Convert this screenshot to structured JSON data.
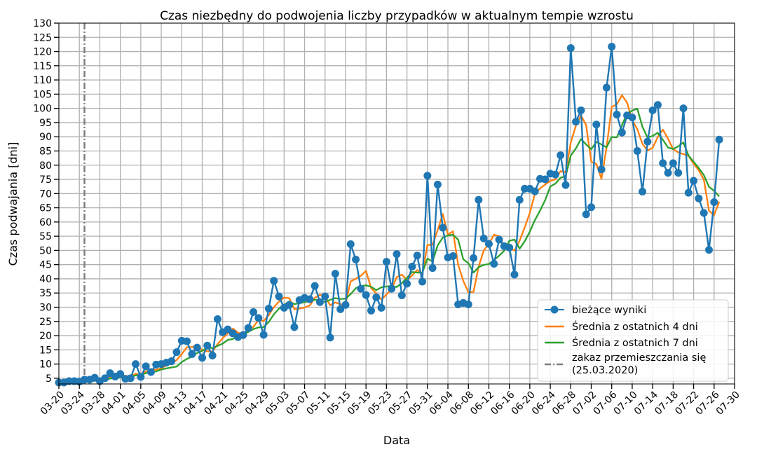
{
  "chart_data": {
    "type": "line",
    "title": "Czas niezbędny do podwojenia liczby przypadków w aktualnym tempie wzrostu",
    "xlabel": "Data",
    "ylabel": "Czas podwajania [dni]",
    "ylim": [
      3,
      130
    ],
    "yticks": [
      5,
      10,
      15,
      20,
      25,
      30,
      35,
      40,
      45,
      50,
      55,
      60,
      65,
      70,
      75,
      80,
      85,
      90,
      95,
      100,
      105,
      110,
      115,
      120,
      125,
      130
    ],
    "xlim": [
      "2020-03-20",
      "2020-07-30"
    ],
    "xticks": [
      "03-20",
      "03-24",
      "03-28",
      "04-01",
      "04-05",
      "04-09",
      "04-13",
      "04-17",
      "04-21",
      "04-25",
      "04-29",
      "05-03",
      "05-07",
      "05-11",
      "05-15",
      "05-19",
      "05-23",
      "05-27",
      "05-31",
      "06-04",
      "06-08",
      "06-12",
      "06-16",
      "06-20",
      "06-24",
      "06-28",
      "07-02",
      "07-06",
      "07-10",
      "07-14",
      "07-18",
      "07-22",
      "07-26",
      "07-30"
    ],
    "grid": true,
    "legend_position": "lower-right",
    "start_date": "2020-03-20",
    "vline": {
      "name": "zakaz przemieszczania się\n(25.03.2020)",
      "x": "2020-03-25",
      "color": "#7f7f7f"
    },
    "series": [
      {
        "name": "bieżące wyniki",
        "color": "#1f77b4",
        "markers": true,
        "values": [
          3.5,
          3.5,
          4,
          4,
          3.8,
          4.5,
          4.5,
          5.2,
          4,
          5,
          6.8,
          5.6,
          6.5,
          4.8,
          5,
          10,
          5.5,
          9.2,
          7.2,
          9.8,
          10,
          10.5,
          11,
          14.2,
          18.2,
          18,
          13.5,
          15.8,
          12.2,
          16.5,
          13,
          25.8,
          21.2,
          22.2,
          20.8,
          19.5,
          20.2,
          22.7,
          28.3,
          26.2,
          20.3,
          29.5,
          39.3,
          33.8,
          29.8,
          30.8,
          23,
          32.5,
          33.3,
          32.8,
          37.5,
          31.8,
          33.8,
          19.3,
          41.8,
          29.3,
          30.8,
          52.2,
          46.8,
          36.5,
          34.3,
          28.8,
          33.5,
          29.8,
          46,
          36.5,
          48.7,
          34.2,
          38.3,
          44.3,
          48.2,
          39,
          76.3,
          43.8,
          73.2,
          58,
          47.5,
          48,
          31,
          31.5,
          31,
          47.3,
          67.8,
          54.2,
          52.3,
          45.3,
          53.8,
          51.5,
          51,
          41.5,
          67.8,
          71.7,
          71.7,
          70.8,
          75.2,
          75,
          77,
          76.7,
          83.5,
          73,
          121.2,
          95.3,
          99.3,
          62.7,
          65.2,
          94.3,
          78.5,
          107.3,
          121.7,
          97.8,
          91.5,
          97.5,
          96.8,
          85,
          70.7,
          88.3,
          99.3,
          101.2,
          80.7,
          77.3,
          80.7,
          77.3,
          100,
          70.3,
          74.5,
          68.3,
          63.2,
          50.2,
          67,
          89
        ]
      },
      {
        "name": "Średnia z ostatnich 4 dni",
        "color": "#ff7f0e",
        "markers": false,
        "values": [
          3.5,
          3.6,
          3.7,
          3.8,
          3.8,
          4,
          4.2,
          4.5,
          4.6,
          4.7,
          5.3,
          5.4,
          6,
          5.9,
          5.5,
          6.6,
          6.3,
          7.4,
          8,
          8,
          8.5,
          9.5,
          10.2,
          11.4,
          13.5,
          15.9,
          16,
          16.4,
          14.9,
          14.5,
          14.4,
          17,
          19.1,
          20.8,
          22.5,
          21,
          20.7,
          21.8,
          23.1,
          25.5,
          25.2,
          27.2,
          30,
          32,
          33.4,
          33.2,
          29.3,
          29.5,
          29.9,
          30.6,
          33.3,
          34.4,
          33.9,
          30.7,
          31.7,
          31,
          31.2,
          39.1,
          40,
          41.1,
          42.8,
          36.7,
          34.9,
          32.7,
          34.5,
          36.4,
          40.6,
          41.5,
          39.6,
          41.2,
          43.1,
          41.7,
          51.9,
          52,
          57.2,
          62.8,
          55.6,
          56.7,
          45,
          39.3,
          35.3,
          35.4,
          44.3,
          50,
          52.3,
          55.5,
          55,
          51.5,
          51,
          49.9,
          53.4,
          58.1,
          63.2,
          70,
          71.8,
          73.2,
          74.5,
          75,
          77.9,
          77.5,
          88,
          93.9,
          97.5,
          94.1,
          81.2,
          80.4,
          75.2,
          86.3,
          100.5,
          101.4,
          104.6,
          102,
          95.9,
          92.7,
          87.5,
          85.2,
          86.1,
          89.9,
          92.5,
          89.3,
          85.6,
          84.5,
          83.9,
          83.3,
          80.5,
          78.2,
          74.9,
          64,
          62.4,
          67.2
        ]
      },
      {
        "name": "Średnia z ostatnich 7 dni",
        "color": "#2ca02c",
        "markers": false,
        "values": [
          3.5,
          3.6,
          3.6,
          3.7,
          3.7,
          3.8,
          3.9,
          4.1,
          4.2,
          4.4,
          4.9,
          5.1,
          5.3,
          5.4,
          5.4,
          6,
          6.2,
          6.8,
          7.1,
          7.4,
          8.1,
          8.5,
          8.8,
          9.1,
          10.7,
          11.8,
          12.6,
          13.9,
          14.7,
          15.8,
          15.6,
          16.4,
          17.2,
          18.5,
          18.8,
          19.9,
          20.3,
          21.3,
          22.3,
          22.9,
          23,
          24.8,
          27.5,
          29.5,
          30.9,
          32,
          31.1,
          31.4,
          31.8,
          32.2,
          32.6,
          32.6,
          31.8,
          32.6,
          33.2,
          32.9,
          33,
          34.6,
          36.7,
          37.5,
          37.7,
          37.2,
          36,
          37,
          37.3,
          37.5,
          37.1,
          38.5,
          40.3,
          42.4,
          42.2,
          42.2,
          47.1,
          46.1,
          51.8,
          54.5,
          55.3,
          55.5,
          53.8,
          46.9,
          45.5,
          42.2,
          44.1,
          44.9,
          45.2,
          46.6,
          48.1,
          49.9,
          53.4,
          53.8,
          50.6,
          53.2,
          56.6,
          60.7,
          64,
          67.7,
          72.5,
          73.5,
          75.6,
          76.1,
          83.4,
          85.9,
          89.2,
          87.3,
          85.6,
          88.2,
          87.3,
          86.3,
          89.9,
          89.8,
          94.1,
          98.2,
          99.2,
          99.9,
          93.5,
          89.7,
          90.3,
          91.4,
          88.9,
          86.2,
          85.7,
          86.6,
          88,
          83.4,
          81.2,
          79,
          76.5,
          72.4,
          71,
          69
        ]
      }
    ]
  }
}
